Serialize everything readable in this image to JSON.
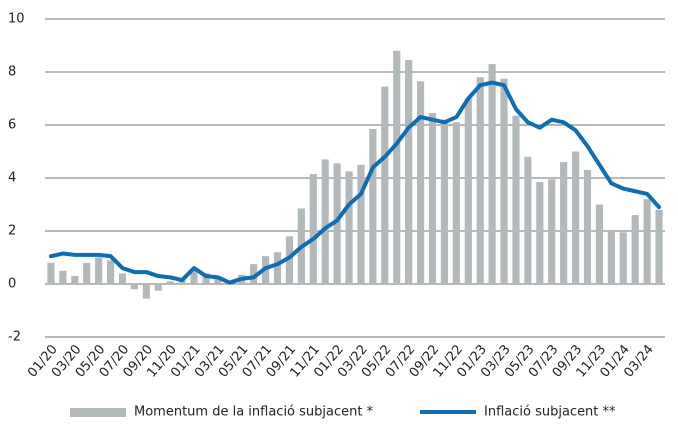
{
  "chart_data": {
    "type": "combo",
    "categories": [
      "01/20",
      null,
      "03/20",
      null,
      "05/20",
      null,
      "07/20",
      null,
      "09/20",
      null,
      "11/20",
      null,
      "01/21",
      null,
      "03/21",
      null,
      "05/21",
      null,
      "07/21",
      null,
      "09/21",
      null,
      "11/21",
      null,
      "01/22",
      null,
      "03/22",
      null,
      "05/22",
      null,
      "07/22",
      null,
      "09/22",
      null,
      "11/22",
      null,
      "01/23",
      null,
      "03/23",
      null,
      "05/23",
      null,
      "07/23",
      null,
      "09/23",
      null,
      "11/23",
      null,
      "01/24",
      null,
      "03/24",
      null
    ],
    "series": [
      {
        "name": "Momentum de la inflació subjacent *",
        "type": "bar",
        "color": "#b3b8ba",
        "values": [
          0.8,
          0.5,
          0.3,
          0.8,
          1.0,
          0.9,
          0.4,
          -0.2,
          -0.55,
          -0.25,
          0.1,
          0.2,
          0.5,
          0.4,
          0.3,
          0.1,
          0.35,
          0.75,
          1.05,
          1.2,
          1.8,
          2.85,
          4.15,
          4.7,
          4.55,
          4.25,
          4.5,
          5.85,
          7.45,
          8.8,
          8.45,
          7.65,
          6.45,
          6.2,
          6.1,
          7.0,
          7.8,
          8.3,
          7.75,
          6.35,
          4.8,
          3.85,
          3.95,
          4.6,
          5.0,
          4.3,
          3.0,
          2.0,
          1.95,
          2.6,
          3.2,
          2.8
        ]
      },
      {
        "name": "Inflació subjacent **",
        "type": "line",
        "color": "#0f6db3",
        "values": [
          1.05,
          1.15,
          1.1,
          1.1,
          1.1,
          1.05,
          0.6,
          0.45,
          0.45,
          0.3,
          0.25,
          0.15,
          0.6,
          0.3,
          0.25,
          0.05,
          0.2,
          0.25,
          0.6,
          0.75,
          1.0,
          1.4,
          1.7,
          2.1,
          2.4,
          3.0,
          3.4,
          4.4,
          4.8,
          5.3,
          5.9,
          6.3,
          6.2,
          6.1,
          6.3,
          7.0,
          7.5,
          7.6,
          7.5,
          6.6,
          6.1,
          5.9,
          6.2,
          6.1,
          5.8,
          5.2,
          4.5,
          3.8,
          3.6,
          3.5,
          3.4,
          2.9
        ]
      }
    ],
    "ylim": [
      -2,
      10
    ],
    "yticks": [
      -2,
      0,
      2,
      4,
      6,
      8,
      10
    ],
    "grid": true
  }
}
